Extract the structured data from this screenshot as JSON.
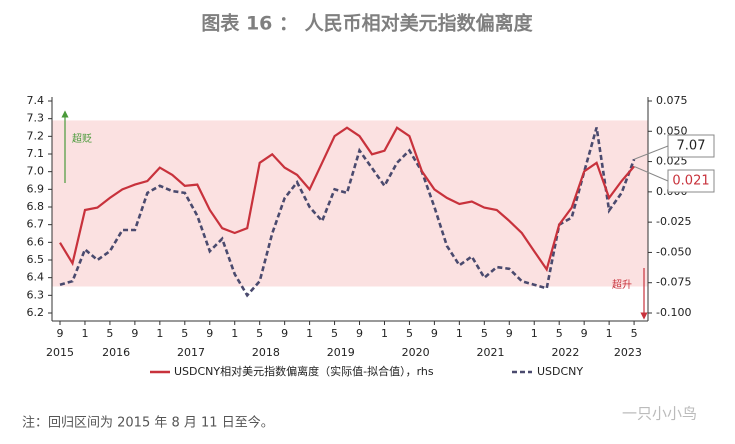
{
  "chart_data": {
    "type": "line",
    "title": "图表 16 ： 人民币相对美元指数偏离度",
    "x": [
      "2015-09",
      "2015-11",
      "2016-01",
      "2016-03",
      "2016-05",
      "2016-07",
      "2016-09",
      "2016-11",
      "2017-01",
      "2017-03",
      "2017-05",
      "2017-07",
      "2017-09",
      "2017-11",
      "2018-01",
      "2018-03",
      "2018-05",
      "2018-07",
      "2018-09",
      "2018-11",
      "2019-01",
      "2019-03",
      "2019-05",
      "2019-07",
      "2019-09",
      "2019-11",
      "2020-01",
      "2020-03",
      "2020-05",
      "2020-07",
      "2020-09",
      "2020-11",
      "2021-01",
      "2021-03",
      "2021-05",
      "2021-07",
      "2021-09",
      "2021-11",
      "2022-01",
      "2022-03",
      "2022-05",
      "2022-07",
      "2022-09",
      "2022-11",
      "2023-01",
      "2023-03",
      "2023-05"
    ],
    "series": [
      {
        "name": "USDCNY相对美元指数偏离度（实际值-拟合值），rhs",
        "color": "#c8323c",
        "axis": "y2",
        "dash": false,
        "values": [
          -0.042,
          -0.059,
          -0.015,
          -0.013,
          -0.005,
          0.002,
          0.006,
          0.009,
          0.02,
          0.014,
          0.005,
          0.006,
          -0.015,
          -0.03,
          -0.034,
          -0.03,
          0.024,
          0.031,
          0.02,
          0.014,
          0.002,
          0.024,
          0.046,
          0.053,
          0.046,
          0.031,
          0.034,
          0.053,
          0.046,
          0.017,
          0.002,
          -0.005,
          -0.01,
          -0.008,
          -0.013,
          -0.015,
          -0.024,
          -0.034,
          -0.049,
          -0.064,
          -0.027,
          -0.013,
          0.017,
          0.024,
          -0.005,
          0.009,
          0.021
        ]
      },
      {
        "name": "USDCNY",
        "color": "#4a4a6e",
        "dash": true,
        "values": [
          6.36,
          6.38,
          6.56,
          6.5,
          6.55,
          6.67,
          6.67,
          6.88,
          6.92,
          6.89,
          6.88,
          6.75,
          6.55,
          6.62,
          6.42,
          6.3,
          6.38,
          6.65,
          6.85,
          6.94,
          6.8,
          6.72,
          6.9,
          6.88,
          7.12,
          7.02,
          6.92,
          7.05,
          7.12,
          7.0,
          6.8,
          6.58,
          6.47,
          6.52,
          6.4,
          6.46,
          6.45,
          6.38,
          6.36,
          6.34,
          6.7,
          6.74,
          7.0,
          7.25,
          6.78,
          6.88,
          7.07
        ]
      }
    ],
    "ylim": [
      6.2,
      7.4
    ],
    "yticks": [
      6.2,
      6.3,
      6.4,
      6.5,
      6.6,
      6.7,
      6.8,
      6.9,
      {
        "value": 7,
        "label": "7.0"
      },
      7.1,
      7.2,
      7.3,
      7.4
    ],
    "y2lim": [
      -0.1,
      0.075
    ],
    "y2ticks": [
      {
        "value": -0.1,
        "label": "-0.100"
      },
      -0.075,
      {
        "value": -0.05,
        "label": "-0.050"
      },
      -0.025,
      {
        "value": 0,
        "label": "0.000"
      },
      0.025,
      {
        "value": 0.05,
        "label": "0.050"
      },
      0.075
    ],
    "xticks": [
      {
        "value": "2015-09",
        "label": "9"
      },
      {
        "value": "2016-01",
        "label": "1"
      },
      {
        "value": "2016-05",
        "label": "5"
      },
      {
        "value": "2016-09",
        "label": "9"
      },
      {
        "value": "2017-01",
        "label": "1"
      },
      {
        "value": "2017-05",
        "label": "5"
      },
      {
        "value": "2017-09",
        "label": "9"
      },
      {
        "value": "2018-01",
        "label": "1"
      },
      {
        "value": "2018-05",
        "label": "5"
      },
      {
        "value": "2018-09",
        "label": "9"
      },
      {
        "value": "2019-01",
        "label": "1"
      },
      {
        "value": "2019-05",
        "label": "5"
      },
      {
        "value": "2019-09",
        "label": "9"
      },
      {
        "value": "2020-01",
        "label": "1"
      },
      {
        "value": "2020-05",
        "label": "5"
      },
      {
        "value": "2020-09",
        "label": "9"
      },
      {
        "value": "2021-01",
        "label": "1"
      },
      {
        "value": "2021-05",
        "label": "5"
      },
      {
        "value": "2021-09",
        "label": "9"
      },
      {
        "value": "2022-01",
        "label": "1"
      },
      {
        "value": "2022-05",
        "label": "5"
      },
      {
        "value": "2022-09",
        "label": "9"
      },
      {
        "value": "2023-01",
        "label": "1"
      },
      {
        "value": "2023-05",
        "label": "5"
      }
    ],
    "year_labels": [
      {
        "value": "2015-09",
        "label": "2015"
      },
      {
        "value": "2016-06",
        "label": "2016"
      },
      {
        "value": "2017-06",
        "label": "2017"
      },
      {
        "value": "2018-06",
        "label": "2018"
      },
      {
        "value": "2019-06",
        "label": "2019"
      },
      {
        "value": "2020-06",
        "label": "2020"
      },
      {
        "value": "2021-06",
        "label": "2021"
      },
      {
        "value": "2022-06",
        "label": "2022"
      },
      {
        "value": "2023-04",
        "label": "2023"
      }
    ],
    "band": [
      6.35,
      7.29
    ],
    "band_color": "#fbe1e1",
    "annotations": [
      "超贬",
      "超升"
    ],
    "callouts": [
      "7.07",
      "0.021"
    ],
    "note": "注：回归区间为 2015 年 8 月 11 日至今。",
    "watermark": "一只小小鸟"
  }
}
